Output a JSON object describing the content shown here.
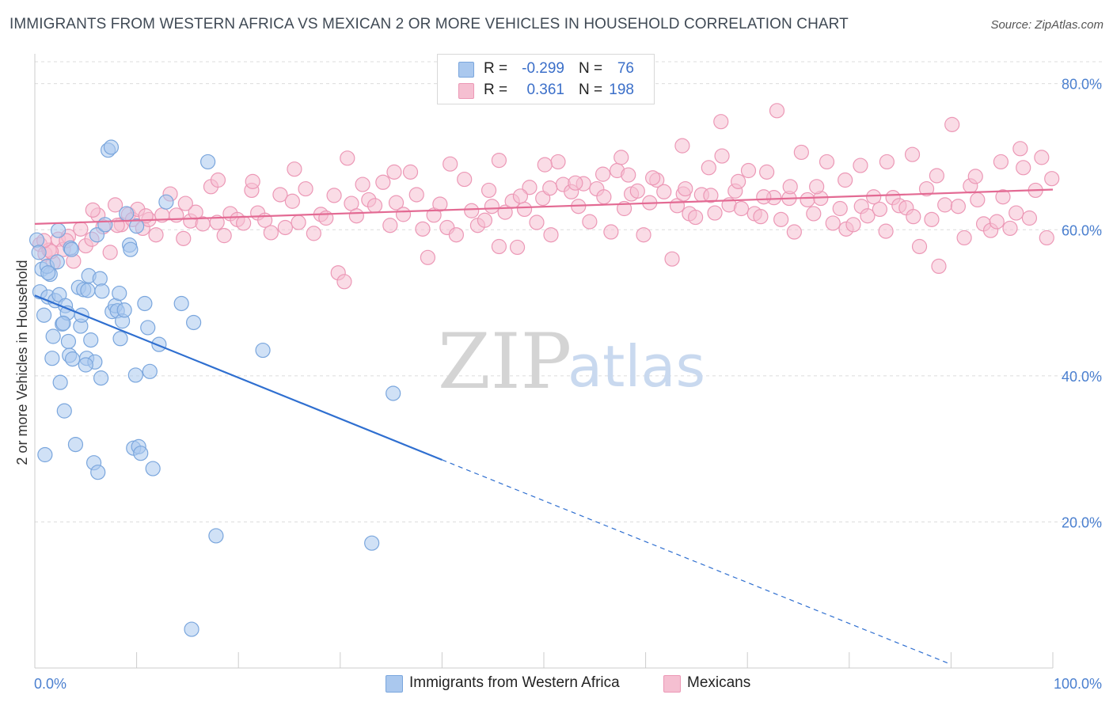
{
  "title": "IMMIGRANTS FROM WESTERN AFRICA VS MEXICAN 2 OR MORE VEHICLES IN HOUSEHOLD CORRELATION CHART",
  "source": "Source: ZipAtlas.com",
  "watermark": {
    "zip": "ZIP",
    "atlas": "atlas"
  },
  "legend": {
    "rows": [
      {
        "r_label": "R =",
        "r_value": "-0.299",
        "n_label": "N =",
        "n_value": "76"
      },
      {
        "r_label": "R =",
        "r_value": "0.361",
        "n_label": "N =",
        "n_value": "198"
      }
    ]
  },
  "bottom_legend": {
    "series1": "Immigrants from Western Africa",
    "series2": "Mexicans"
  },
  "colors": {
    "blue_fill": "#aac8ee",
    "blue_stroke": "#7aa6dd",
    "blue_line": "#2f6fd0",
    "pink_fill": "#f5bfd1",
    "pink_stroke": "#ec98b6",
    "pink_line": "#e36a93",
    "tick": "#4a7fcf",
    "grid": "#dcdcdc"
  },
  "chart_data": {
    "type": "scatter",
    "xlabel": "",
    "ylabel": "2 or more Vehicles in Household",
    "xlim": [
      0,
      100
    ],
    "ylim": [
      0,
      83
    ],
    "x_ticks": [
      "0.0%",
      "100.0%"
    ],
    "y_ticks": [
      {
        "value": 20,
        "label": "20.0%"
      },
      {
        "value": 40,
        "label": "40.0%"
      },
      {
        "value": 60,
        "label": "60.0%"
      },
      {
        "value": 80,
        "label": "80.0%"
      }
    ],
    "series": [
      {
        "name": "Immigrants from Western Africa",
        "R": -0.299,
        "N": 76,
        "trend": {
          "x0": 0,
          "y0": 51.0,
          "x1": 40,
          "y1": 28.5,
          "dash_to_x": 90,
          "dash_to_y": 0.5
        },
        "points": [
          [
            0.2,
            58.6
          ],
          [
            0.4,
            56.9
          ],
          [
            0.5,
            51.5
          ],
          [
            0.7,
            54.6
          ],
          [
            0.9,
            48.3
          ],
          [
            1.0,
            29.2
          ],
          [
            1.3,
            50.8
          ],
          [
            1.5,
            53.9
          ],
          [
            1.7,
            42.4
          ],
          [
            1.8,
            45.4
          ],
          [
            2.0,
            50.3
          ],
          [
            2.3,
            59.9
          ],
          [
            2.4,
            51.1
          ],
          [
            2.5,
            39.1
          ],
          [
            2.7,
            47.1
          ],
          [
            2.9,
            35.2
          ],
          [
            3.0,
            49.6
          ],
          [
            3.2,
            48.6
          ],
          [
            3.3,
            44.7
          ],
          [
            3.4,
            42.8
          ],
          [
            3.5,
            57.5
          ],
          [
            3.7,
            42.3
          ],
          [
            4.0,
            30.6
          ],
          [
            4.3,
            52.1
          ],
          [
            4.5,
            46.8
          ],
          [
            4.8,
            51.8
          ],
          [
            5.1,
            42.4
          ],
          [
            5.2,
            51.7
          ],
          [
            5.3,
            53.7
          ],
          [
            5.5,
            44.9
          ],
          [
            5.8,
            28.1
          ],
          [
            5.9,
            41.9
          ],
          [
            6.1,
            59.3
          ],
          [
            6.2,
            26.8
          ],
          [
            6.4,
            53.3
          ],
          [
            6.5,
            39.7
          ],
          [
            6.6,
            51.6
          ],
          [
            6.9,
            60.7
          ],
          [
            7.2,
            70.9
          ],
          [
            7.5,
            71.3
          ],
          [
            7.6,
            48.8
          ],
          [
            7.9,
            49.6
          ],
          [
            8.1,
            48.9
          ],
          [
            8.3,
            51.3
          ],
          [
            8.4,
            45.1
          ],
          [
            8.6,
            47.5
          ],
          [
            9.0,
            62.2
          ],
          [
            9.3,
            57.9
          ],
          [
            9.4,
            57.3
          ],
          [
            9.7,
            30.1
          ],
          [
            9.9,
            40.1
          ],
          [
            10.0,
            60.5
          ],
          [
            10.2,
            30.3
          ],
          [
            10.4,
            29.4
          ],
          [
            10.8,
            49.9
          ],
          [
            11.1,
            46.6
          ],
          [
            11.3,
            40.6
          ],
          [
            11.6,
            27.3
          ],
          [
            12.2,
            44.3
          ],
          [
            12.9,
            63.8
          ],
          [
            14.4,
            49.9
          ],
          [
            15.6,
            47.3
          ],
          [
            17.0,
            69.3
          ],
          [
            17.8,
            18.1
          ],
          [
            22.4,
            43.5
          ],
          [
            33.1,
            17.1
          ],
          [
            35.2,
            37.6
          ],
          [
            1.2,
            55.0
          ],
          [
            2.2,
            55.6
          ],
          [
            3.6,
            57.3
          ],
          [
            4.6,
            48.3
          ],
          [
            5.0,
            41.5
          ],
          [
            8.8,
            49.0
          ],
          [
            15.4,
            5.3
          ],
          [
            1.3,
            54.1
          ],
          [
            2.8,
            47.2
          ]
        ]
      },
      {
        "name": "Mexicans",
        "R": 0.361,
        "N": 198,
        "trend": {
          "x0": 0,
          "y0": 60.8,
          "x1": 100,
          "y1": 65.5
        },
        "points": [
          [
            0.5,
            58.0
          ],
          [
            1.0,
            56.7
          ],
          [
            1.4,
            57.2
          ],
          [
            1.8,
            55.5
          ],
          [
            2.3,
            58.7
          ],
          [
            2.8,
            57.3
          ],
          [
            3.3,
            59.1
          ],
          [
            3.8,
            55.7
          ],
          [
            4.5,
            60.1
          ],
          [
            5.0,
            57.8
          ],
          [
            5.6,
            58.7
          ],
          [
            6.2,
            62.0
          ],
          [
            6.7,
            60.4
          ],
          [
            7.4,
            56.9
          ],
          [
            7.9,
            63.4
          ],
          [
            8.5,
            60.7
          ],
          [
            9.2,
            62.1
          ],
          [
            9.6,
            61.4
          ],
          [
            10.1,
            62.8
          ],
          [
            10.6,
            60.2
          ],
          [
            11.2,
            61.4
          ],
          [
            11.9,
            59.3
          ],
          [
            12.5,
            62.0
          ],
          [
            13.3,
            64.9
          ],
          [
            13.9,
            62.0
          ],
          [
            14.6,
            58.8
          ],
          [
            15.3,
            61.2
          ],
          [
            15.8,
            62.4
          ],
          [
            16.5,
            60.8
          ],
          [
            17.3,
            65.9
          ],
          [
            17.9,
            61.0
          ],
          [
            18.6,
            59.2
          ],
          [
            19.2,
            62.2
          ],
          [
            19.9,
            61.4
          ],
          [
            20.5,
            60.9
          ],
          [
            21.3,
            65.4
          ],
          [
            21.9,
            62.3
          ],
          [
            22.6,
            61.3
          ],
          [
            23.2,
            59.6
          ],
          [
            24.1,
            64.8
          ],
          [
            24.6,
            60.3
          ],
          [
            25.3,
            63.9
          ],
          [
            25.9,
            61.0
          ],
          [
            26.6,
            65.6
          ],
          [
            27.4,
            59.5
          ],
          [
            28.1,
            62.1
          ],
          [
            28.6,
            61.6
          ],
          [
            29.4,
            64.7
          ],
          [
            29.8,
            54.1
          ],
          [
            30.4,
            52.9
          ],
          [
            31.1,
            63.6
          ],
          [
            31.6,
            61.9
          ],
          [
            32.2,
            66.2
          ],
          [
            32.8,
            64.1
          ],
          [
            33.4,
            63.3
          ],
          [
            34.2,
            66.5
          ],
          [
            34.9,
            60.6
          ],
          [
            35.5,
            63.7
          ],
          [
            36.2,
            62.1
          ],
          [
            36.9,
            67.9
          ],
          [
            37.5,
            64.8
          ],
          [
            38.1,
            60.1
          ],
          [
            38.6,
            56.2
          ],
          [
            39.2,
            62.0
          ],
          [
            39.8,
            63.5
          ],
          [
            40.5,
            60.3
          ],
          [
            41.4,
            59.3
          ],
          [
            42.2,
            66.9
          ],
          [
            42.9,
            62.6
          ],
          [
            43.5,
            60.6
          ],
          [
            44.2,
            61.3
          ],
          [
            44.9,
            63.2
          ],
          [
            45.6,
            57.7
          ],
          [
            46.2,
            62.4
          ],
          [
            46.9,
            63.9
          ],
          [
            47.4,
            57.6
          ],
          [
            48.1,
            62.8
          ],
          [
            48.6,
            65.8
          ],
          [
            49.3,
            61.0
          ],
          [
            49.9,
            64.3
          ],
          [
            50.7,
            59.3
          ],
          [
            51.4,
            69.3
          ],
          [
            51.9,
            66.2
          ],
          [
            52.7,
            65.2
          ],
          [
            53.4,
            63.2
          ],
          [
            53.9,
            66.3
          ],
          [
            54.5,
            61.1
          ],
          [
            55.2,
            65.6
          ],
          [
            55.9,
            64.5
          ],
          [
            56.6,
            59.7
          ],
          [
            57.2,
            68.1
          ],
          [
            57.9,
            62.9
          ],
          [
            58.6,
            64.9
          ],
          [
            59.2,
            65.3
          ],
          [
            59.8,
            59.3
          ],
          [
            60.4,
            63.7
          ],
          [
            61.1,
            66.8
          ],
          [
            61.8,
            65.2
          ],
          [
            62.6,
            56.0
          ],
          [
            63.1,
            63.3
          ],
          [
            63.7,
            64.9
          ],
          [
            64.3,
            62.2
          ],
          [
            64.9,
            61.7
          ],
          [
            65.5,
            64.8
          ],
          [
            66.2,
            68.5
          ],
          [
            66.8,
            62.3
          ],
          [
            67.5,
            70.1
          ],
          [
            68.2,
            63.4
          ],
          [
            68.8,
            65.3
          ],
          [
            69.4,
            62.9
          ],
          [
            70.1,
            68.1
          ],
          [
            70.7,
            62.2
          ],
          [
            71.3,
            61.8
          ],
          [
            71.9,
            67.9
          ],
          [
            72.6,
            64.4
          ],
          [
            73.3,
            61.4
          ],
          [
            74.1,
            64.3
          ],
          [
            74.6,
            59.7
          ],
          [
            75.3,
            70.6
          ],
          [
            75.9,
            64.1
          ],
          [
            76.5,
            62.2
          ],
          [
            77.2,
            64.3
          ],
          [
            77.8,
            69.3
          ],
          [
            78.4,
            60.9
          ],
          [
            79.1,
            62.9
          ],
          [
            79.7,
            60.1
          ],
          [
            80.4,
            60.7
          ],
          [
            81.2,
            63.2
          ],
          [
            81.8,
            61.9
          ],
          [
            82.4,
            64.5
          ],
          [
            83.0,
            62.8
          ],
          [
            83.6,
            59.8
          ],
          [
            84.3,
            64.4
          ],
          [
            84.9,
            63.3
          ],
          [
            85.6,
            63.0
          ],
          [
            86.3,
            61.8
          ],
          [
            86.9,
            57.7
          ],
          [
            87.6,
            65.6
          ],
          [
            88.1,
            61.4
          ],
          [
            88.8,
            55.0
          ],
          [
            89.4,
            63.4
          ],
          [
            90.1,
            74.4
          ],
          [
            90.7,
            63.2
          ],
          [
            91.3,
            58.9
          ],
          [
            91.9,
            66.0
          ],
          [
            92.6,
            64.1
          ],
          [
            93.2,
            60.8
          ],
          [
            93.9,
            59.9
          ],
          [
            94.5,
            61.1
          ],
          [
            95.1,
            64.5
          ],
          [
            95.8,
            60.2
          ],
          [
            96.4,
            62.3
          ],
          [
            97.1,
            68.5
          ],
          [
            97.7,
            61.6
          ],
          [
            98.3,
            65.4
          ],
          [
            98.9,
            69.9
          ],
          [
            99.4,
            58.9
          ],
          [
            99.9,
            67.0
          ],
          [
            72.9,
            76.3
          ],
          [
            67.4,
            74.8
          ],
          [
            63.6,
            71.5
          ],
          [
            57.6,
            69.9
          ],
          [
            50.1,
            68.9
          ],
          [
            45.6,
            69.5
          ],
          [
            40.8,
            69.0
          ],
          [
            35.3,
            67.9
          ],
          [
            30.7,
            69.8
          ],
          [
            25.5,
            68.3
          ],
          [
            21.4,
            66.6
          ],
          [
            18.0,
            66.8
          ],
          [
            14.8,
            63.6
          ],
          [
            10.9,
            61.9
          ],
          [
            8.1,
            60.6
          ],
          [
            5.7,
            62.7
          ],
          [
            3.1,
            58.5
          ],
          [
            1.6,
            57.0
          ],
          [
            0.9,
            58.5
          ],
          [
            96.8,
            71.1
          ],
          [
            94.9,
            69.3
          ],
          [
            92.4,
            67.3
          ],
          [
            88.6,
            67.4
          ],
          [
            86.2,
            70.3
          ],
          [
            83.7,
            69.3
          ],
          [
            81.1,
            68.8
          ],
          [
            79.6,
            66.8
          ],
          [
            76.8,
            65.9
          ],
          [
            74.2,
            65.9
          ],
          [
            71.6,
            64.5
          ],
          [
            69.1,
            66.6
          ],
          [
            66.4,
            64.7
          ],
          [
            63.9,
            65.6
          ],
          [
            60.7,
            67.1
          ],
          [
            58.3,
            67.5
          ],
          [
            55.8,
            67.6
          ],
          [
            53.1,
            66.4
          ],
          [
            50.6,
            65.7
          ],
          [
            47.7,
            64.6
          ],
          [
            44.6,
            65.4
          ]
        ]
      }
    ]
  }
}
